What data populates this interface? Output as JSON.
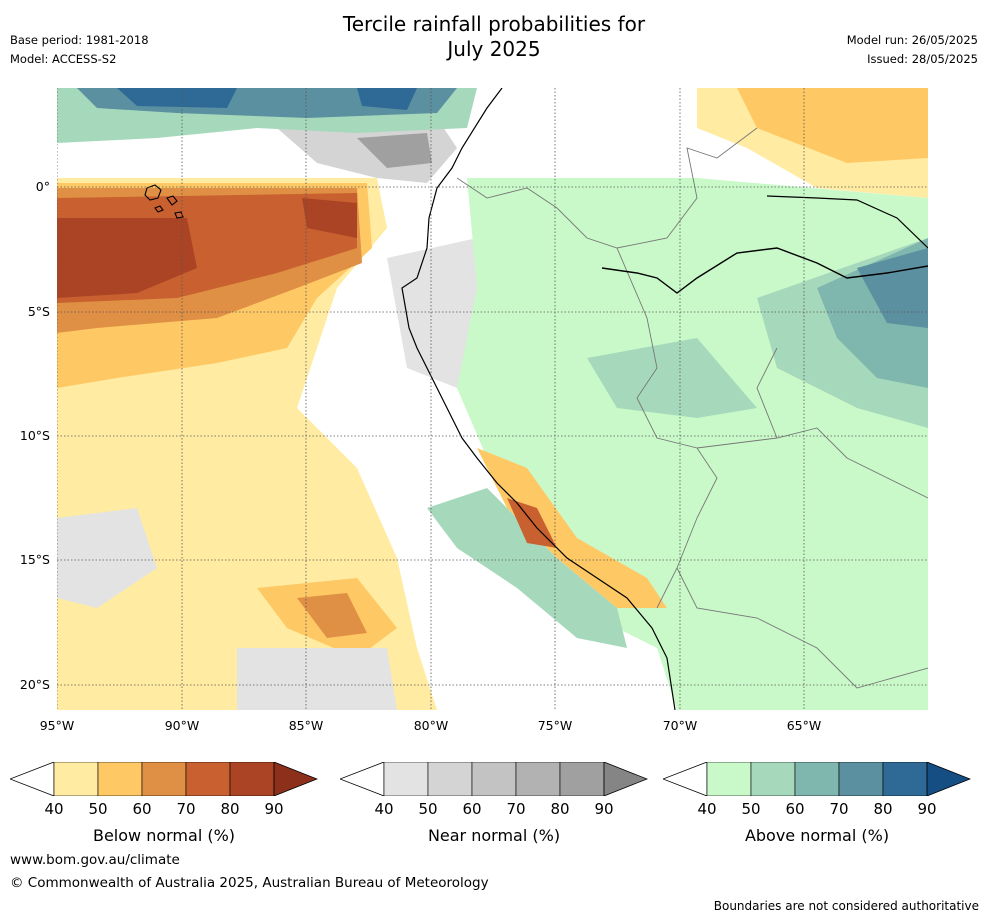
{
  "title_line1": "Tercile rainfall probabilities for",
  "title_line2": "July 2025",
  "base_period": "Base period: 1981-2018",
  "model": "Model: ACCESS-S2",
  "model_run": "Model run: 26/05/2025",
  "issued": "Issued: 28/05/2025",
  "lat_labels": [
    "0°",
    "5°S",
    "10°S",
    "15°S",
    "20°S"
  ],
  "lon_labels": [
    "95°W",
    "90°W",
    "85°W",
    "80°W",
    "75°W",
    "70°W",
    "65°W"
  ],
  "colorbars": [
    {
      "label": "Below normal (%)",
      "ticks": [
        "40",
        "50",
        "60",
        "70",
        "80",
        "90"
      ],
      "colors": [
        "#ffeba1",
        "#fec965",
        "#e09044",
        "#c9602f",
        "#ab4424",
        "#8c2f1b"
      ]
    },
    {
      "label": "Near normal (%)",
      "ticks": [
        "40",
        "50",
        "60",
        "70",
        "80",
        "90"
      ],
      "colors": [
        "#e3e3e3",
        "#d4d4d4",
        "#c3c3c3",
        "#b2b2b2",
        "#a0a0a0",
        "#858585"
      ]
    },
    {
      "label": "Above normal (%)",
      "ticks": [
        "40",
        "50",
        "60",
        "70",
        "80",
        "90"
      ],
      "colors": [
        "#c9f9c9",
        "#a6d9bc",
        "#7fb6ad",
        "#5b90a0",
        "#2f6a97",
        "#154e82"
      ]
    }
  ],
  "website": "www.bom.gov.au/climate",
  "copyright": "© Commonwealth of Australia 2025, Australian Bureau of Meteorology",
  "disclaimer": "Boundaries are not considered authoritative"
}
